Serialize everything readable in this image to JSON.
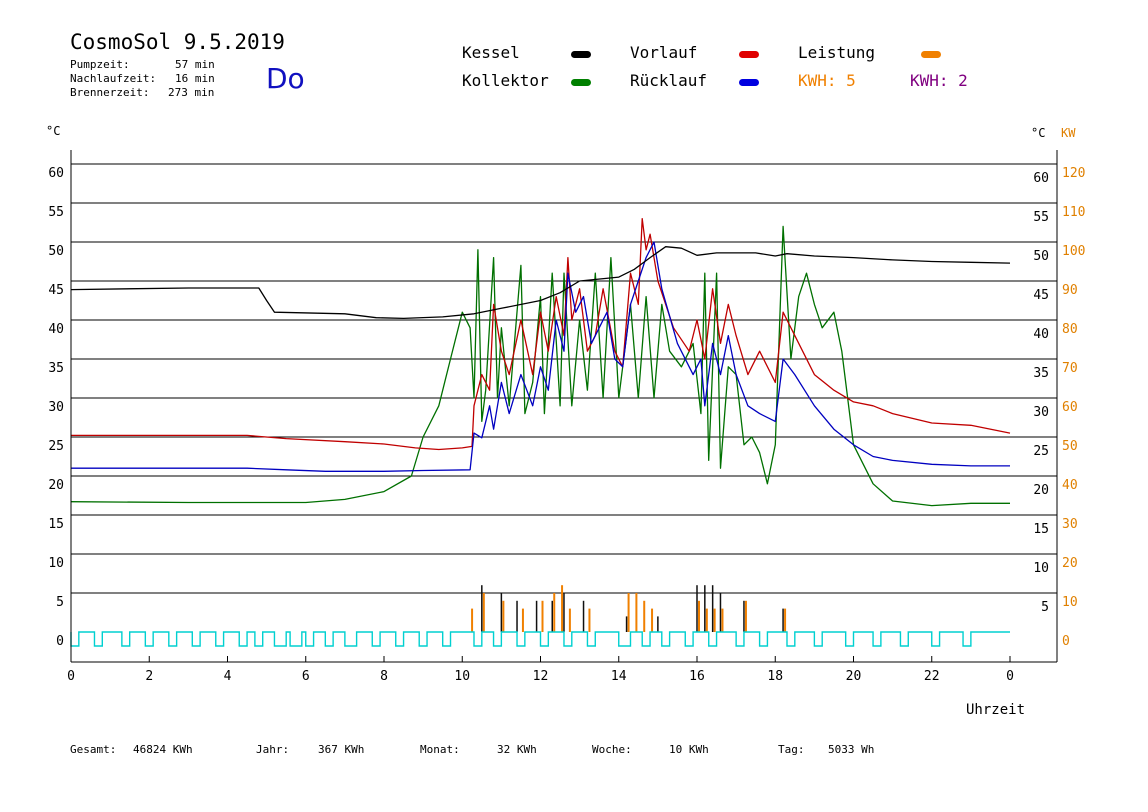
{
  "header": {
    "title": "CosmoSol 9.5.2019",
    "day": "Do",
    "stats": [
      {
        "label": "Pumpzeit:",
        "value": "57 min"
      },
      {
        "label": "Nachlaufzeit:",
        "value": "16 min"
      },
      {
        "label": "Brennerzeit:",
        "value": "273 min"
      }
    ]
  },
  "legend": {
    "kessel": {
      "label": "Kessel",
      "color": "#000000"
    },
    "kollektor": {
      "label": "Kollektor",
      "color": "#008000"
    },
    "vorlauf": {
      "label": "Vorlauf",
      "color": "#e00000"
    },
    "ruecklauf": {
      "label": "Rücklauf",
      "color": "#0000e0"
    },
    "leistung": {
      "label": "Leistung",
      "color": "#f08000"
    },
    "kwh1": {
      "label": "KWH: 5",
      "color": "#f08000"
    },
    "kwh2": {
      "label": "KWH: 2",
      "color": "#800080"
    }
  },
  "axes": {
    "left_unit": "°C",
    "right_unit": "°C",
    "right_unit2": "KW",
    "xlabel": "Uhrzeit"
  },
  "footer": [
    {
      "label": "Gesamt:",
      "value": "46824 KWh"
    },
    {
      "label": "Jahr:",
      "value": "367 KWh"
    },
    {
      "label": "Monat:",
      "value": "32 KWh"
    },
    {
      "label": "Woche:",
      "value": "10 KWh"
    },
    {
      "label": "Tag:",
      "value": "5033 Wh"
    }
  ],
  "chart_data": {
    "type": "line",
    "x_range": [
      0,
      24
    ],
    "y_range": [
      0,
      60
    ],
    "y2_range": [
      0,
      120
    ],
    "grid": true,
    "x_ticks": [
      "0",
      "2",
      "4",
      "6",
      "8",
      "10",
      "12",
      "14",
      "16",
      "18",
      "20",
      "22",
      "0"
    ],
    "y_ticks": [
      0,
      5,
      10,
      15,
      20,
      25,
      30,
      35,
      40,
      45,
      50,
      55,
      60
    ],
    "y2_ticks": [
      0,
      10,
      20,
      30,
      40,
      50,
      60,
      70,
      80,
      90,
      100,
      110,
      120
    ],
    "series": [
      {
        "name": "Kessel",
        "color": "#000000",
        "points": [
          [
            0,
            43.9
          ],
          [
            3,
            44.1
          ],
          [
            4.8,
            44.1
          ],
          [
            5.0,
            42.5
          ],
          [
            5.2,
            41
          ],
          [
            7,
            40.8
          ],
          [
            7.8,
            40.3
          ],
          [
            8.5,
            40.2
          ],
          [
            9.5,
            40.4
          ],
          [
            10.3,
            40.8
          ],
          [
            11,
            41.5
          ],
          [
            12,
            42.5
          ],
          [
            12.5,
            43.5
          ],
          [
            13,
            45
          ],
          [
            14,
            45.5
          ],
          [
            14.4,
            46.5
          ],
          [
            14.8,
            48
          ],
          [
            15.2,
            49.4
          ],
          [
            15.6,
            49.2
          ],
          [
            16,
            48.3
          ],
          [
            16.5,
            48.6
          ],
          [
            17.5,
            48.6
          ],
          [
            18,
            48.2
          ],
          [
            18.3,
            48.5
          ],
          [
            19,
            48.2
          ],
          [
            20,
            48.0
          ],
          [
            21,
            47.7
          ],
          [
            22,
            47.5
          ],
          [
            23,
            47.4
          ],
          [
            24,
            47.3
          ]
        ]
      },
      {
        "name": "Vorlauf",
        "color": "#c00000",
        "points": [
          [
            0,
            25.2
          ],
          [
            4.5,
            25.2
          ],
          [
            5.5,
            24.8
          ],
          [
            7,
            24.4
          ],
          [
            8,
            24.1
          ],
          [
            8.8,
            23.6
          ],
          [
            9.4,
            23.4
          ],
          [
            10.0,
            23.6
          ],
          [
            10.25,
            23.8
          ],
          [
            10.3,
            29
          ],
          [
            10.5,
            33
          ],
          [
            10.7,
            31
          ],
          [
            10.8,
            42
          ],
          [
            11,
            36
          ],
          [
            11.2,
            33
          ],
          [
            11.5,
            40
          ],
          [
            11.8,
            33
          ],
          [
            12,
            41
          ],
          [
            12.2,
            36
          ],
          [
            12.4,
            43
          ],
          [
            12.6,
            38
          ],
          [
            12.7,
            48
          ],
          [
            12.8,
            40
          ],
          [
            13,
            44
          ],
          [
            13.2,
            36
          ],
          [
            13.4,
            38
          ],
          [
            13.6,
            44
          ],
          [
            13.9,
            36
          ],
          [
            14.1,
            34
          ],
          [
            14.3,
            46
          ],
          [
            14.5,
            42
          ],
          [
            14.6,
            53
          ],
          [
            14.7,
            49
          ],
          [
            14.8,
            51
          ],
          [
            15,
            45
          ],
          [
            15.4,
            39
          ],
          [
            15.8,
            36
          ],
          [
            16.0,
            40
          ],
          [
            16.2,
            35
          ],
          [
            16.4,
            44
          ],
          [
            16.6,
            37
          ],
          [
            16.8,
            42
          ],
          [
            17,
            38
          ],
          [
            17.3,
            33
          ],
          [
            17.6,
            36
          ],
          [
            18.0,
            32
          ],
          [
            18.2,
            41
          ],
          [
            18.5,
            38
          ],
          [
            19,
            33
          ],
          [
            19.5,
            31
          ],
          [
            20,
            29.5
          ],
          [
            20.5,
            29
          ],
          [
            21,
            28
          ],
          [
            22,
            26.8
          ],
          [
            23,
            26.5
          ],
          [
            24,
            25.5
          ]
        ]
      },
      {
        "name": "Rücklauf",
        "color": "#0000c0",
        "points": [
          [
            0,
            21.0
          ],
          [
            4.5,
            21.0
          ],
          [
            5.5,
            20.8
          ],
          [
            6.5,
            20.6
          ],
          [
            8,
            20.6
          ],
          [
            9,
            20.7
          ],
          [
            10.2,
            20.8
          ],
          [
            10.3,
            25.5
          ],
          [
            10.5,
            24.9
          ],
          [
            10.7,
            29
          ],
          [
            10.8,
            26
          ],
          [
            11,
            32
          ],
          [
            11.2,
            28
          ],
          [
            11.5,
            33
          ],
          [
            11.8,
            29
          ],
          [
            12,
            34
          ],
          [
            12.2,
            31
          ],
          [
            12.4,
            40
          ],
          [
            12.6,
            36
          ],
          [
            12.7,
            46
          ],
          [
            12.9,
            41
          ],
          [
            13.1,
            43
          ],
          [
            13.3,
            37
          ],
          [
            13.5,
            39
          ],
          [
            13.7,
            41
          ],
          [
            13.9,
            35
          ],
          [
            14.1,
            34
          ],
          [
            14.3,
            42
          ],
          [
            14.5,
            45
          ],
          [
            14.7,
            48
          ],
          [
            14.9,
            50
          ],
          [
            15.1,
            44
          ],
          [
            15.5,
            37
          ],
          [
            15.9,
            33
          ],
          [
            16.1,
            35
          ],
          [
            16.2,
            29
          ],
          [
            16.4,
            37
          ],
          [
            16.6,
            33
          ],
          [
            16.8,
            38
          ],
          [
            17,
            33
          ],
          [
            17.3,
            29
          ],
          [
            17.6,
            28
          ],
          [
            18.0,
            27
          ],
          [
            18.2,
            35
          ],
          [
            18.5,
            33
          ],
          [
            19,
            29
          ],
          [
            19.5,
            26
          ],
          [
            20,
            24
          ],
          [
            20.5,
            22.5
          ],
          [
            21,
            22
          ],
          [
            22,
            21.5
          ],
          [
            23,
            21.3
          ],
          [
            24,
            21.3
          ]
        ]
      },
      {
        "name": "Kollektor",
        "color": "#007000",
        "points": [
          [
            0,
            16.7
          ],
          [
            3,
            16.6
          ],
          [
            6,
            16.6
          ],
          [
            7,
            17.0
          ],
          [
            8,
            18
          ],
          [
            8.7,
            20
          ],
          [
            9.0,
            25
          ],
          [
            9.4,
            29
          ],
          [
            9.7,
            35
          ],
          [
            10.0,
            41
          ],
          [
            10.2,
            39
          ],
          [
            10.3,
            30
          ],
          [
            10.4,
            49
          ],
          [
            10.5,
            27
          ],
          [
            10.6,
            31
          ],
          [
            10.8,
            48
          ],
          [
            10.9,
            30
          ],
          [
            11.0,
            39
          ],
          [
            11.2,
            29
          ],
          [
            11.5,
            47
          ],
          [
            11.6,
            28
          ],
          [
            11.8,
            32
          ],
          [
            12.0,
            43
          ],
          [
            12.1,
            28
          ],
          [
            12.3,
            46
          ],
          [
            12.5,
            29
          ],
          [
            12.6,
            46
          ],
          [
            12.8,
            29
          ],
          [
            13.0,
            40
          ],
          [
            13.2,
            31
          ],
          [
            13.4,
            46
          ],
          [
            13.6,
            30
          ],
          [
            13.8,
            48
          ],
          [
            14.0,
            30
          ],
          [
            14.3,
            42
          ],
          [
            14.5,
            30
          ],
          [
            14.7,
            43
          ],
          [
            14.9,
            30
          ],
          [
            15.1,
            42
          ],
          [
            15.3,
            36
          ],
          [
            15.6,
            34
          ],
          [
            15.9,
            37
          ],
          [
            16.1,
            28
          ],
          [
            16.2,
            46
          ],
          [
            16.3,
            22
          ],
          [
            16.5,
            46
          ],
          [
            16.6,
            21
          ],
          [
            16.8,
            34
          ],
          [
            17.0,
            33
          ],
          [
            17.2,
            24
          ],
          [
            17.4,
            25
          ],
          [
            17.6,
            23
          ],
          [
            17.8,
            19
          ],
          [
            18.0,
            24
          ],
          [
            18.2,
            52
          ],
          [
            18.4,
            35
          ],
          [
            18.6,
            43
          ],
          [
            18.8,
            46
          ],
          [
            19.0,
            42
          ],
          [
            19.2,
            39
          ],
          [
            19.5,
            41
          ],
          [
            19.7,
            36
          ],
          [
            20.0,
            24
          ],
          [
            20.5,
            19
          ],
          [
            21.0,
            16.8
          ],
          [
            22.0,
            16.2
          ],
          [
            23,
            16.5
          ],
          [
            24,
            16.5
          ]
        ]
      }
    ],
    "leistung_bars": [
      [
        10.2,
        3
      ],
      [
        10.5,
        5
      ],
      [
        11.0,
        4
      ],
      [
        11.5,
        3
      ],
      [
        12.0,
        4
      ],
      [
        12.3,
        5
      ],
      [
        12.5,
        6
      ],
      [
        12.7,
        3
      ],
      [
        13.2,
        3
      ],
      [
        14.2,
        5
      ],
      [
        14.4,
        5
      ],
      [
        14.6,
        4
      ],
      [
        14.8,
        3
      ],
      [
        16.0,
        4
      ],
      [
        16.2,
        3
      ],
      [
        16.4,
        3
      ],
      [
        16.6,
        3
      ],
      [
        17.2,
        4
      ],
      [
        18.2,
        3
      ]
    ],
    "brenner_bars": [
      [
        10.5,
        6
      ],
      [
        11.0,
        5
      ],
      [
        11.4,
        4
      ],
      [
        11.9,
        4
      ],
      [
        12.3,
        4
      ],
      [
        12.6,
        5
      ],
      [
        13.1,
        4
      ],
      [
        14.2,
        2
      ],
      [
        15.0,
        2
      ],
      [
        16.0,
        6
      ],
      [
        16.2,
        6
      ],
      [
        16.4,
        6
      ],
      [
        16.6,
        5
      ],
      [
        17.2,
        4
      ],
      [
        18.2,
        3
      ]
    ],
    "pump_pulses": [
      [
        0,
        0.2
      ],
      [
        0.6,
        0.8
      ],
      [
        1.3,
        1.5
      ],
      [
        1.9,
        2.1
      ],
      [
        2.5,
        2.7
      ],
      [
        3.1,
        3.3
      ],
      [
        3.7,
        3.9
      ],
      [
        4.3,
        4.5
      ],
      [
        4.7,
        4.9
      ],
      [
        5.2,
        5.5
      ],
      [
        5.6,
        5.9
      ],
      [
        6.0,
        6.2
      ],
      [
        6.5,
        6.7
      ],
      [
        7.0,
        7.3
      ],
      [
        7.7,
        7.9
      ],
      [
        8.3,
        8.5
      ],
      [
        8.9,
        9.1
      ],
      [
        9.5,
        9.7
      ],
      [
        10.3,
        10.5
      ],
      [
        10.8,
        11.0
      ],
      [
        11.4,
        11.6
      ],
      [
        12.0,
        12.2
      ],
      [
        12.6,
        12.8
      ],
      [
        13.2,
        13.4
      ],
      [
        14.0,
        14.3
      ],
      [
        14.6,
        14.8
      ],
      [
        15.1,
        15.3
      ],
      [
        15.7,
        15.9
      ],
      [
        16.3,
        16.5
      ],
      [
        17.0,
        17.2
      ],
      [
        17.6,
        17.8
      ],
      [
        18.3,
        18.5
      ],
      [
        19.0,
        19.2
      ],
      [
        19.8,
        20.0
      ],
      [
        20.5,
        20.7
      ],
      [
        21.2,
        21.4
      ],
      [
        22.0,
        22.2
      ],
      [
        22.8,
        23.0
      ]
    ]
  }
}
